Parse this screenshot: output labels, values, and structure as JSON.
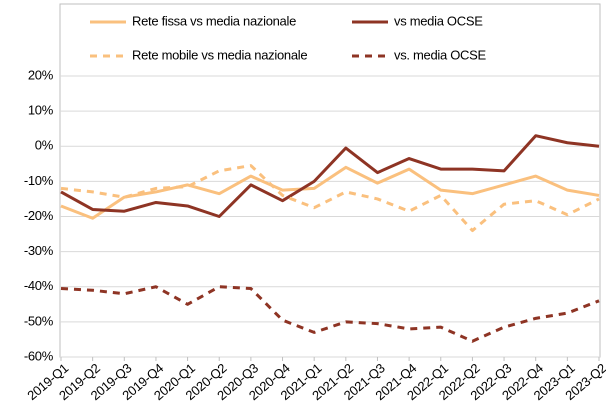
{
  "chart_data": {
    "type": "line",
    "categories": [
      "2019-Q1",
      "2019-Q2",
      "2019-Q3",
      "2019-Q4",
      "2020-Q1",
      "2020-Q2",
      "2020-Q3",
      "2020-Q4",
      "2021-Q1",
      "2021-Q2",
      "2021-Q3",
      "2021-Q4",
      "2022-Q1",
      "2022-Q2",
      "2022-Q3",
      "2022-Q4",
      "2023-Q1",
      "2023-Q2"
    ],
    "series": [
      {
        "name": "Rete fissa vs media nazionale",
        "color": "#fac07e",
        "dash": false,
        "values": [
          -17,
          -20.5,
          -14.5,
          -13,
          -11,
          -13.5,
          -8.5,
          -12.5,
          -12,
          -6,
          -10.5,
          -6.5,
          -12.5,
          -13.5,
          -11,
          -8.5,
          -12.5,
          -14
        ]
      },
      {
        "name": "vs media OCSE",
        "color": "#8e3424",
        "dash": false,
        "values": [
          -13,
          -18,
          -18.5,
          -16,
          -17,
          -20,
          -11,
          -15.5,
          -10,
          -0.5,
          -7.5,
          -3.5,
          -6.5,
          -6.5,
          -7,
          3,
          1,
          0
        ]
      },
      {
        "name": "Rete mobile vs media nazionale",
        "color": "#fac07e",
        "dash": true,
        "values": [
          -12,
          -13,
          -14.5,
          -12,
          -11.5,
          -7,
          -5.5,
          -14,
          -17.5,
          -13,
          -15,
          -18.5,
          -14,
          -24,
          -16.5,
          -15.5,
          -19.5,
          -15
        ]
      },
      {
        "name": "vs. media OCSE",
        "color": "#8e3424",
        "dash": true,
        "values": [
          -40.5,
          -41,
          -42,
          -40,
          -45,
          -40,
          -40.5,
          -49.5,
          -53,
          -50,
          -50.5,
          -52,
          -51.5,
          -55.5,
          -51.5,
          -49,
          -47.5,
          -44
        ]
      }
    ],
    "ylim": [
      -60,
      20
    ],
    "yticks": [
      {
        "value": -60,
        "label": "-60%"
      },
      {
        "value": -50,
        "label": "-50%"
      },
      {
        "value": -40,
        "label": "-40%"
      },
      {
        "value": -30,
        "label": "-30%"
      },
      {
        "value": -20,
        "label": "-20%"
      },
      {
        "value": -10,
        "label": "-10%"
      },
      {
        "value": 0,
        "label": "0%"
      },
      {
        "value": 10,
        "label": "10%"
      },
      {
        "value": 20,
        "label": "20%"
      }
    ],
    "grid": true,
    "legend": "top"
  }
}
